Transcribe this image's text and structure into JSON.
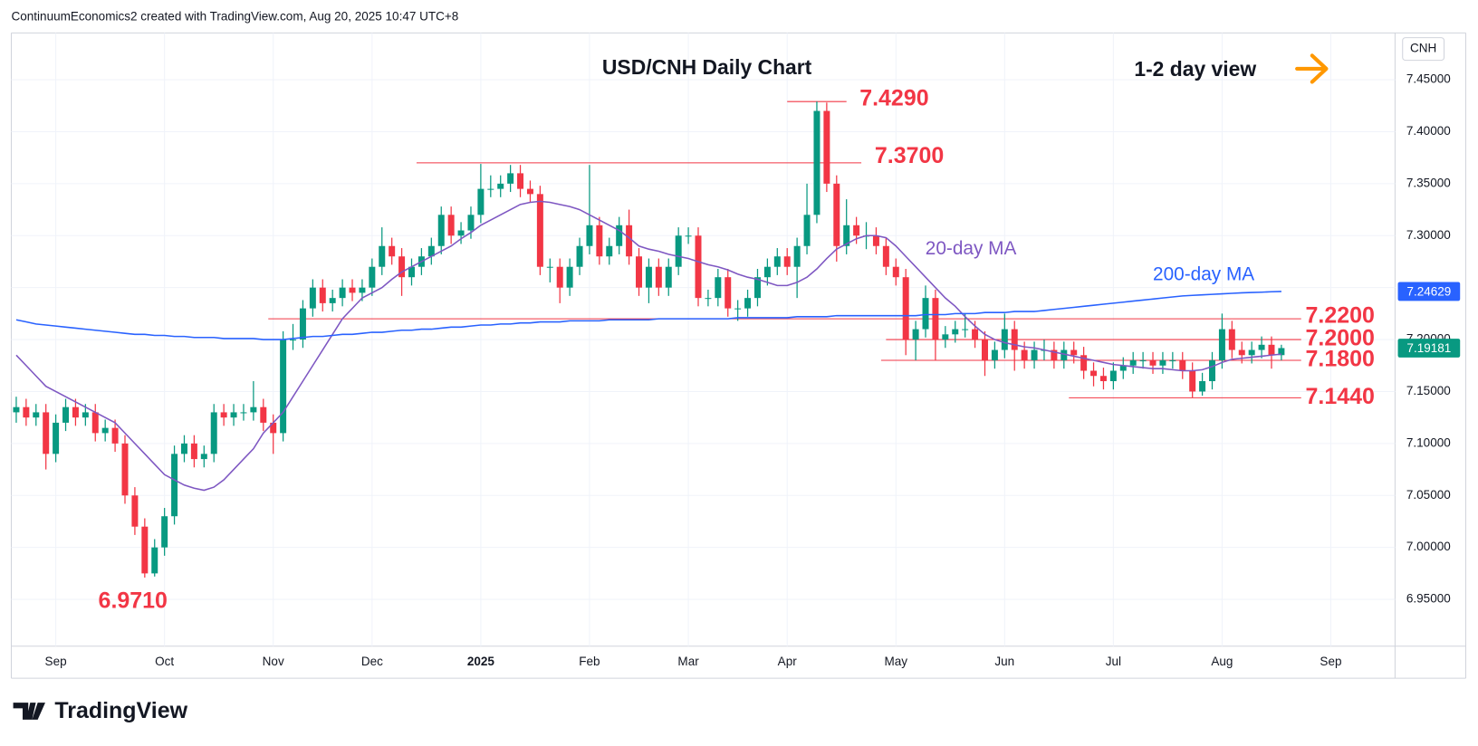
{
  "header": {
    "attribution": "ContinuumEconomics2 created with TradingView.com, Aug 20, 2025 10:47 UTC+8"
  },
  "footer": {
    "brand": "TradingView"
  },
  "currency": "CNH",
  "chart_data": {
    "type": "candlestick",
    "title": "USD/CNH Daily Chart",
    "annotation": "1-2 day view",
    "up_color": "#089981",
    "down_color": "#f23645",
    "grid": true,
    "ylim": [
      6.905,
      7.495
    ],
    "yticks": [
      {
        "value": 6.95,
        "label": "6.95000"
      },
      {
        "value": 7.0,
        "label": "7.00000"
      },
      {
        "value": 7.05,
        "label": "7.05000"
      },
      {
        "value": 7.1,
        "label": "7.10000"
      },
      {
        "value": 7.15,
        "label": "7.15000"
      },
      {
        "value": 7.2,
        "label": "7.20000"
      },
      {
        "value": 7.25,
        "label": "7.25000"
      },
      {
        "value": 7.3,
        "label": "7.30000"
      },
      {
        "value": 7.35,
        "label": "7.35000"
      },
      {
        "value": 7.4,
        "label": "7.40000"
      },
      {
        "value": 7.45,
        "label": "7.45000"
      }
    ],
    "categories": [
      null,
      null,
      null,
      null,
      "Sep",
      null,
      null,
      null,
      null,
      null,
      null,
      null,
      null,
      null,
      null,
      "Oct",
      null,
      null,
      null,
      null,
      null,
      null,
      null,
      null,
      null,
      null,
      "Nov",
      null,
      null,
      null,
      null,
      null,
      null,
      null,
      null,
      null,
      "Dec",
      null,
      null,
      null,
      null,
      null,
      null,
      null,
      null,
      null,
      null,
      "2025",
      null,
      null,
      null,
      null,
      null,
      null,
      null,
      null,
      null,
      null,
      "Feb",
      null,
      null,
      null,
      null,
      null,
      null,
      null,
      null,
      null,
      "Mar",
      null,
      null,
      null,
      null,
      null,
      null,
      null,
      null,
      null,
      "Apr",
      null,
      null,
      null,
      null,
      null,
      null,
      null,
      null,
      null,
      null,
      "May",
      null,
      null,
      null,
      null,
      null,
      null,
      null,
      null,
      null,
      null,
      "Jun",
      null,
      null,
      null,
      null,
      null,
      null,
      null,
      null,
      null,
      null,
      "Jul",
      null,
      null,
      null,
      null,
      null,
      null,
      null,
      null,
      null,
      null,
      "Aug",
      null,
      null,
      null,
      null,
      null,
      null,
      null,
      null,
      null,
      null,
      "Sep",
      null,
      null,
      null,
      null,
      null,
      null
    ],
    "open": [
      7.13,
      7.135,
      7.125,
      7.13,
      7.09,
      7.12,
      7.135,
      7.125,
      7.13,
      7.11,
      7.115,
      7.1,
      7.05,
      7.02,
      6.975,
      7.0,
      7.03,
      7.09,
      7.1,
      7.085,
      7.09,
      7.13,
      7.125,
      7.13,
      7.13,
      7.135,
      7.12,
      7.11,
      7.2,
      7.2,
      7.23,
      7.25,
      7.235,
      7.24,
      7.25,
      7.245,
      7.25,
      7.27,
      7.29,
      7.28,
      7.26,
      7.27,
      7.28,
      7.29,
      7.32,
      7.3,
      7.305,
      7.32,
      7.345,
      7.345,
      7.35,
      7.36,
      7.345,
      7.34,
      7.27,
      7.27,
      7.25,
      7.27,
      7.29,
      7.31,
      7.28,
      7.29,
      7.31,
      7.28,
      7.25,
      7.27,
      7.25,
      7.27,
      7.3,
      7.3,
      7.24,
      7.24,
      7.26,
      7.23,
      7.23,
      7.24,
      7.26,
      7.27,
      7.28,
      7.27,
      7.29,
      7.32,
      7.42,
      7.35,
      7.29,
      7.31,
      7.3,
      7.3,
      7.29,
      7.27,
      7.26,
      7.2,
      7.21,
      7.24,
      7.2,
      7.205,
      7.21,
      7.21,
      7.2,
      7.18,
      7.19,
      7.21,
      7.19,
      7.18,
      7.19,
      7.19,
      7.18,
      7.19,
      7.185,
      7.17,
      7.165,
      7.16,
      7.17,
      7.175,
      7.18,
      7.18,
      7.175,
      7.18,
      7.18,
      7.17,
      7.15,
      7.16,
      7.18,
      7.21,
      7.19,
      7.185,
      7.19,
      7.195,
      7.185,
      null,
      null,
      null,
      null,
      null,
      null,
      null,
      null,
      null,
      null,
      null
    ],
    "high": [
      7.145,
      7.143,
      7.138,
      7.138,
      7.128,
      7.143,
      7.143,
      7.138,
      7.138,
      7.123,
      7.123,
      7.108,
      7.058,
      7.028,
      7.008,
      7.038,
      7.098,
      7.108,
      7.108,
      7.098,
      7.138,
      7.138,
      7.138,
      7.138,
      7.16,
      7.143,
      7.128,
      7.208,
      7.215,
      7.238,
      7.258,
      7.258,
      7.248,
      7.258,
      7.258,
      7.258,
      7.278,
      7.308,
      7.298,
      7.288,
      7.278,
      7.288,
      7.298,
      7.328,
      7.328,
      7.313,
      7.328,
      7.369,
      7.358,
      7.358,
      7.368,
      7.368,
      7.353,
      7.348,
      7.278,
      7.278,
      7.278,
      7.298,
      7.368,
      7.318,
      7.298,
      7.318,
      7.325,
      7.288,
      7.278,
      7.278,
      7.278,
      7.308,
      7.308,
      7.308,
      7.248,
      7.268,
      7.268,
      7.238,
      7.248,
      7.268,
      7.278,
      7.288,
      7.288,
      7.298,
      7.35,
      7.429,
      7.428,
      7.358,
      7.335,
      7.318,
      7.313,
      7.308,
      7.298,
      7.278,
      7.268,
      7.218,
      7.252,
      7.248,
      7.213,
      7.218,
      7.225,
      7.218,
      7.208,
      7.198,
      7.225,
      7.218,
      7.198,
      7.198,
      7.2,
      7.198,
      7.198,
      7.198,
      7.193,
      7.178,
      7.173,
      7.178,
      7.183,
      7.188,
      7.188,
      7.188,
      7.188,
      7.188,
      7.188,
      7.178,
      7.168,
      7.188,
      7.225,
      7.218,
      7.198,
      7.198,
      7.203,
      7.203,
      7.195,
      null,
      null,
      null,
      null,
      null,
      null,
      null,
      null,
      null,
      null,
      null
    ],
    "low": [
      7.12,
      7.117,
      7.117,
      7.075,
      7.082,
      7.112,
      7.117,
      7.117,
      7.102,
      7.102,
      7.092,
      7.042,
      7.012,
      6.971,
      6.972,
      6.992,
      7.022,
      7.082,
      7.077,
      7.077,
      7.082,
      7.117,
      7.117,
      7.122,
      7.122,
      7.112,
      7.09,
      7.102,
      7.19,
      7.192,
      7.222,
      7.227,
      7.227,
      7.232,
      7.237,
      7.237,
      7.242,
      7.262,
      7.272,
      7.242,
      7.252,
      7.262,
      7.272,
      7.282,
      7.292,
      7.292,
      7.297,
      7.312,
      7.337,
      7.337,
      7.342,
      7.337,
      7.332,
      7.262,
      7.255,
      7.235,
      7.242,
      7.262,
      7.282,
      7.272,
      7.272,
      7.282,
      7.272,
      7.242,
      7.235,
      7.242,
      7.242,
      7.262,
      7.292,
      7.232,
      7.232,
      7.232,
      7.222,
      7.218,
      7.222,
      7.232,
      7.252,
      7.262,
      7.262,
      7.24,
      7.282,
      7.312,
      7.342,
      7.275,
      7.282,
      7.292,
      7.287,
      7.282,
      7.262,
      7.252,
      7.185,
      7.18,
      7.202,
      7.18,
      7.192,
      7.197,
      7.202,
      7.192,
      7.165,
      7.172,
      7.182,
      7.17,
      7.172,
      7.172,
      7.18,
      7.172,
      7.172,
      7.177,
      7.162,
      7.155,
      7.152,
      7.152,
      7.162,
      7.167,
      7.172,
      7.167,
      7.167,
      7.172,
      7.162,
      7.144,
      7.146,
      7.152,
      7.172,
      7.182,
      7.177,
      7.177,
      7.182,
      7.172,
      7.18,
      null,
      null,
      null,
      null,
      null,
      null,
      null,
      null,
      null,
      null,
      null
    ],
    "close": [
      7.135,
      7.125,
      7.13,
      7.09,
      7.12,
      7.135,
      7.125,
      7.13,
      7.11,
      7.115,
      7.1,
      7.05,
      7.02,
      6.975,
      7.0,
      7.03,
      7.09,
      7.1,
      7.085,
      7.09,
      7.13,
      7.125,
      7.13,
      7.13,
      7.135,
      7.12,
      7.11,
      7.2,
      7.2,
      7.23,
      7.25,
      7.235,
      7.24,
      7.25,
      7.245,
      7.25,
      7.27,
      7.29,
      7.28,
      7.26,
      7.27,
      7.28,
      7.29,
      7.32,
      7.3,
      7.305,
      7.32,
      7.345,
      7.345,
      7.35,
      7.36,
      7.345,
      7.34,
      7.27,
      7.27,
      7.25,
      7.27,
      7.29,
      7.31,
      7.28,
      7.29,
      7.31,
      7.28,
      7.25,
      7.27,
      7.25,
      7.27,
      7.3,
      7.3,
      7.24,
      7.24,
      7.26,
      7.23,
      7.23,
      7.24,
      7.26,
      7.27,
      7.28,
      7.27,
      7.29,
      7.32,
      7.42,
      7.35,
      7.29,
      7.31,
      7.3,
      7.3,
      7.29,
      7.27,
      7.26,
      7.2,
      7.21,
      7.24,
      7.2,
      7.205,
      7.21,
      7.21,
      7.2,
      7.18,
      7.19,
      7.21,
      7.19,
      7.18,
      7.19,
      7.19,
      7.18,
      7.19,
      7.185,
      7.17,
      7.165,
      7.16,
      7.17,
      7.175,
      7.18,
      7.18,
      7.175,
      7.18,
      7.18,
      7.17,
      7.15,
      7.16,
      7.18,
      7.21,
      7.19,
      7.185,
      7.19,
      7.195,
      7.185,
      7.19181,
      null,
      null,
      null,
      null,
      null,
      null,
      null,
      null,
      null,
      null,
      null
    ],
    "series": [
      {
        "name": "20-day MA",
        "color": "#7e57c2",
        "values": [
          7.185,
          7.175,
          7.165,
          7.155,
          7.15,
          7.145,
          7.14,
          7.135,
          7.13,
          7.125,
          7.12,
          7.11,
          7.1,
          7.09,
          7.08,
          7.07,
          7.065,
          7.06,
          7.057,
          7.055,
          7.058,
          7.065,
          7.075,
          7.085,
          7.095,
          7.11,
          7.12,
          7.13,
          7.145,
          7.16,
          7.175,
          7.19,
          7.205,
          7.22,
          7.23,
          7.24,
          7.245,
          7.25,
          7.258,
          7.265,
          7.27,
          7.275,
          7.28,
          7.285,
          7.29,
          7.297,
          7.303,
          7.31,
          7.315,
          7.32,
          7.325,
          7.33,
          7.332,
          7.333,
          7.332,
          7.33,
          7.328,
          7.325,
          7.32,
          7.315,
          7.31,
          7.305,
          7.298,
          7.29,
          7.287,
          7.285,
          7.282,
          7.28,
          7.278,
          7.275,
          7.272,
          7.27,
          7.267,
          7.263,
          7.26,
          7.258,
          7.255,
          7.252,
          7.252,
          7.255,
          7.26,
          7.268,
          7.278,
          7.287,
          7.292,
          7.297,
          7.3,
          7.3,
          7.298,
          7.29,
          7.28,
          7.27,
          7.26,
          7.25,
          7.24,
          7.232,
          7.222,
          7.213,
          7.205,
          7.2,
          7.197,
          7.195,
          7.193,
          7.192,
          7.19,
          7.188,
          7.186,
          7.184,
          7.182,
          7.18,
          7.178,
          7.176,
          7.175,
          7.174,
          7.173,
          7.172,
          7.172,
          7.171,
          7.17,
          7.17,
          7.171,
          7.174,
          7.178,
          7.181,
          7.182,
          7.183,
          7.184,
          7.185,
          7.186,
          null,
          null,
          null,
          null,
          null,
          null,
          null,
          null,
          null,
          null,
          null
        ]
      },
      {
        "name": "200-day MA",
        "color": "#2962ff",
        "values": [
          7.219,
          7.217,
          7.215,
          7.214,
          7.213,
          7.212,
          7.211,
          7.21,
          7.209,
          7.208,
          7.207,
          7.206,
          7.205,
          7.205,
          7.204,
          7.204,
          7.203,
          7.203,
          7.202,
          7.202,
          7.202,
          7.201,
          7.201,
          7.201,
          7.201,
          7.2,
          7.2,
          7.2,
          7.201,
          7.202,
          7.203,
          7.203,
          7.204,
          7.205,
          7.205,
          7.206,
          7.207,
          7.207,
          7.208,
          7.209,
          7.209,
          7.21,
          7.21,
          7.211,
          7.212,
          7.212,
          7.213,
          7.214,
          7.214,
          7.215,
          7.215,
          7.216,
          7.216,
          7.217,
          7.217,
          7.217,
          7.218,
          7.218,
          7.218,
          7.218,
          7.219,
          7.219,
          7.219,
          7.219,
          7.219,
          7.22,
          7.22,
          7.22,
          7.22,
          7.22,
          7.22,
          7.22,
          7.22,
          7.221,
          7.221,
          7.221,
          7.221,
          7.221,
          7.221,
          7.222,
          7.222,
          7.222,
          7.222,
          7.223,
          7.223,
          7.223,
          7.223,
          7.223,
          7.223,
          7.223,
          7.223,
          7.223,
          7.224,
          7.224,
          7.224,
          7.225,
          7.225,
          7.225,
          7.226,
          7.226,
          7.226,
          7.227,
          7.227,
          7.227,
          7.228,
          7.229,
          7.23,
          7.231,
          7.232,
          7.233,
          7.234,
          7.235,
          7.236,
          7.237,
          7.238,
          7.239,
          7.24,
          7.241,
          7.242,
          7.2425,
          7.243,
          7.2435,
          7.244,
          7.2445,
          7.245,
          7.2453,
          7.2456,
          7.246,
          7.24629,
          null,
          null,
          null,
          null,
          null,
          null,
          null,
          null,
          null,
          null,
          null
        ]
      }
    ],
    "levels": [
      {
        "value": 7.429,
        "label": "7.4290"
      },
      {
        "value": 7.37,
        "label": "7.3700"
      },
      {
        "value": 7.22,
        "label": "7.2200"
      },
      {
        "value": 7.2,
        "label": "7.2000"
      },
      {
        "value": 7.18,
        "label": "7.1800"
      },
      {
        "value": 7.144,
        "label": "7.1440"
      },
      {
        "value": 6.971,
        "label": "6.9710"
      }
    ]
  }
}
